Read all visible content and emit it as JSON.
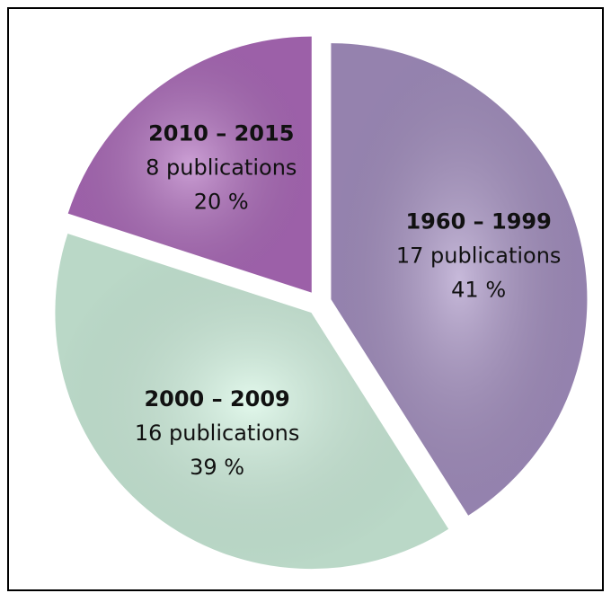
{
  "chart_data": {
    "type": "pie",
    "categories": [
      "1960 – 1999",
      "2000 – 2009",
      "2010 – 2015"
    ],
    "values": [
      41,
      39,
      20
    ],
    "value_labels": [
      "41 %",
      "39 %",
      "20 %"
    ],
    "counts": [
      17,
      16,
      8
    ],
    "count_labels": [
      "17 publications",
      "16 publications",
      "8 publications"
    ],
    "colors": [
      "#a994c6",
      "#d3f5e2",
      "#b16dbf"
    ],
    "exploded": true
  }
}
